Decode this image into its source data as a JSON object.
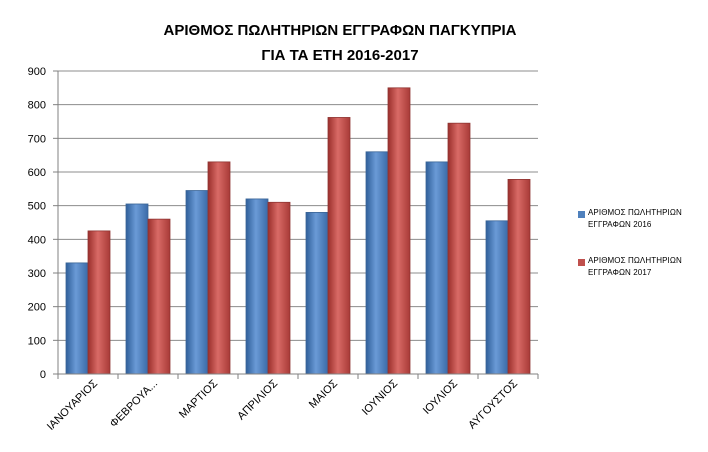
{
  "chart_data": {
    "type": "bar",
    "title_line1": "ΑΡΙΘΜΟΣ ΠΩΛΗΤΗΡΙΩΝ ΕΓΓΡΑΦΩΝ ΠΑΓΚΥΠΡΙΑ",
    "title_line2": "ΓΙΑ ΤΑ ΕΤΗ 2016-2017",
    "categories": [
      "ΙΑΝΟΥΑΡΙΟΣ",
      "ΦΕΒΡΟΥΑ...",
      "ΜΑΡΤΙΟΣ",
      "ΑΠΡΙΛΙΟΣ",
      "ΜΑΙΟΣ",
      "ΙΟΥΝΙΟΣ",
      "ΙΟΥΛΙΟΣ",
      "ΑΥΓΟΥΣΤΟΣ"
    ],
    "series": [
      {
        "name": "ΑΡΙΘΜΟΣ ΠΩΛΗΤΗΡΙΩΝ ΕΓΓΡΑΦΩΝ 2016",
        "color": "#4f81bd",
        "values": [
          330,
          505,
          545,
          520,
          480,
          660,
          630,
          455
        ]
      },
      {
        "name": "ΑΡΙΘΜΟΣ ΠΩΛΗΤΗΡΙΩΝ ΕΓΓΡΑΦΩΝ 2017",
        "color": "#c0504d",
        "values": [
          425,
          460,
          630,
          510,
          762,
          850,
          745,
          578
        ]
      }
    ],
    "ylim": [
      0,
      900
    ],
    "yticks": [
      0,
      100,
      200,
      300,
      400,
      500,
      600,
      700,
      800,
      900
    ],
    "grid": true,
    "legend_position": "right"
  }
}
